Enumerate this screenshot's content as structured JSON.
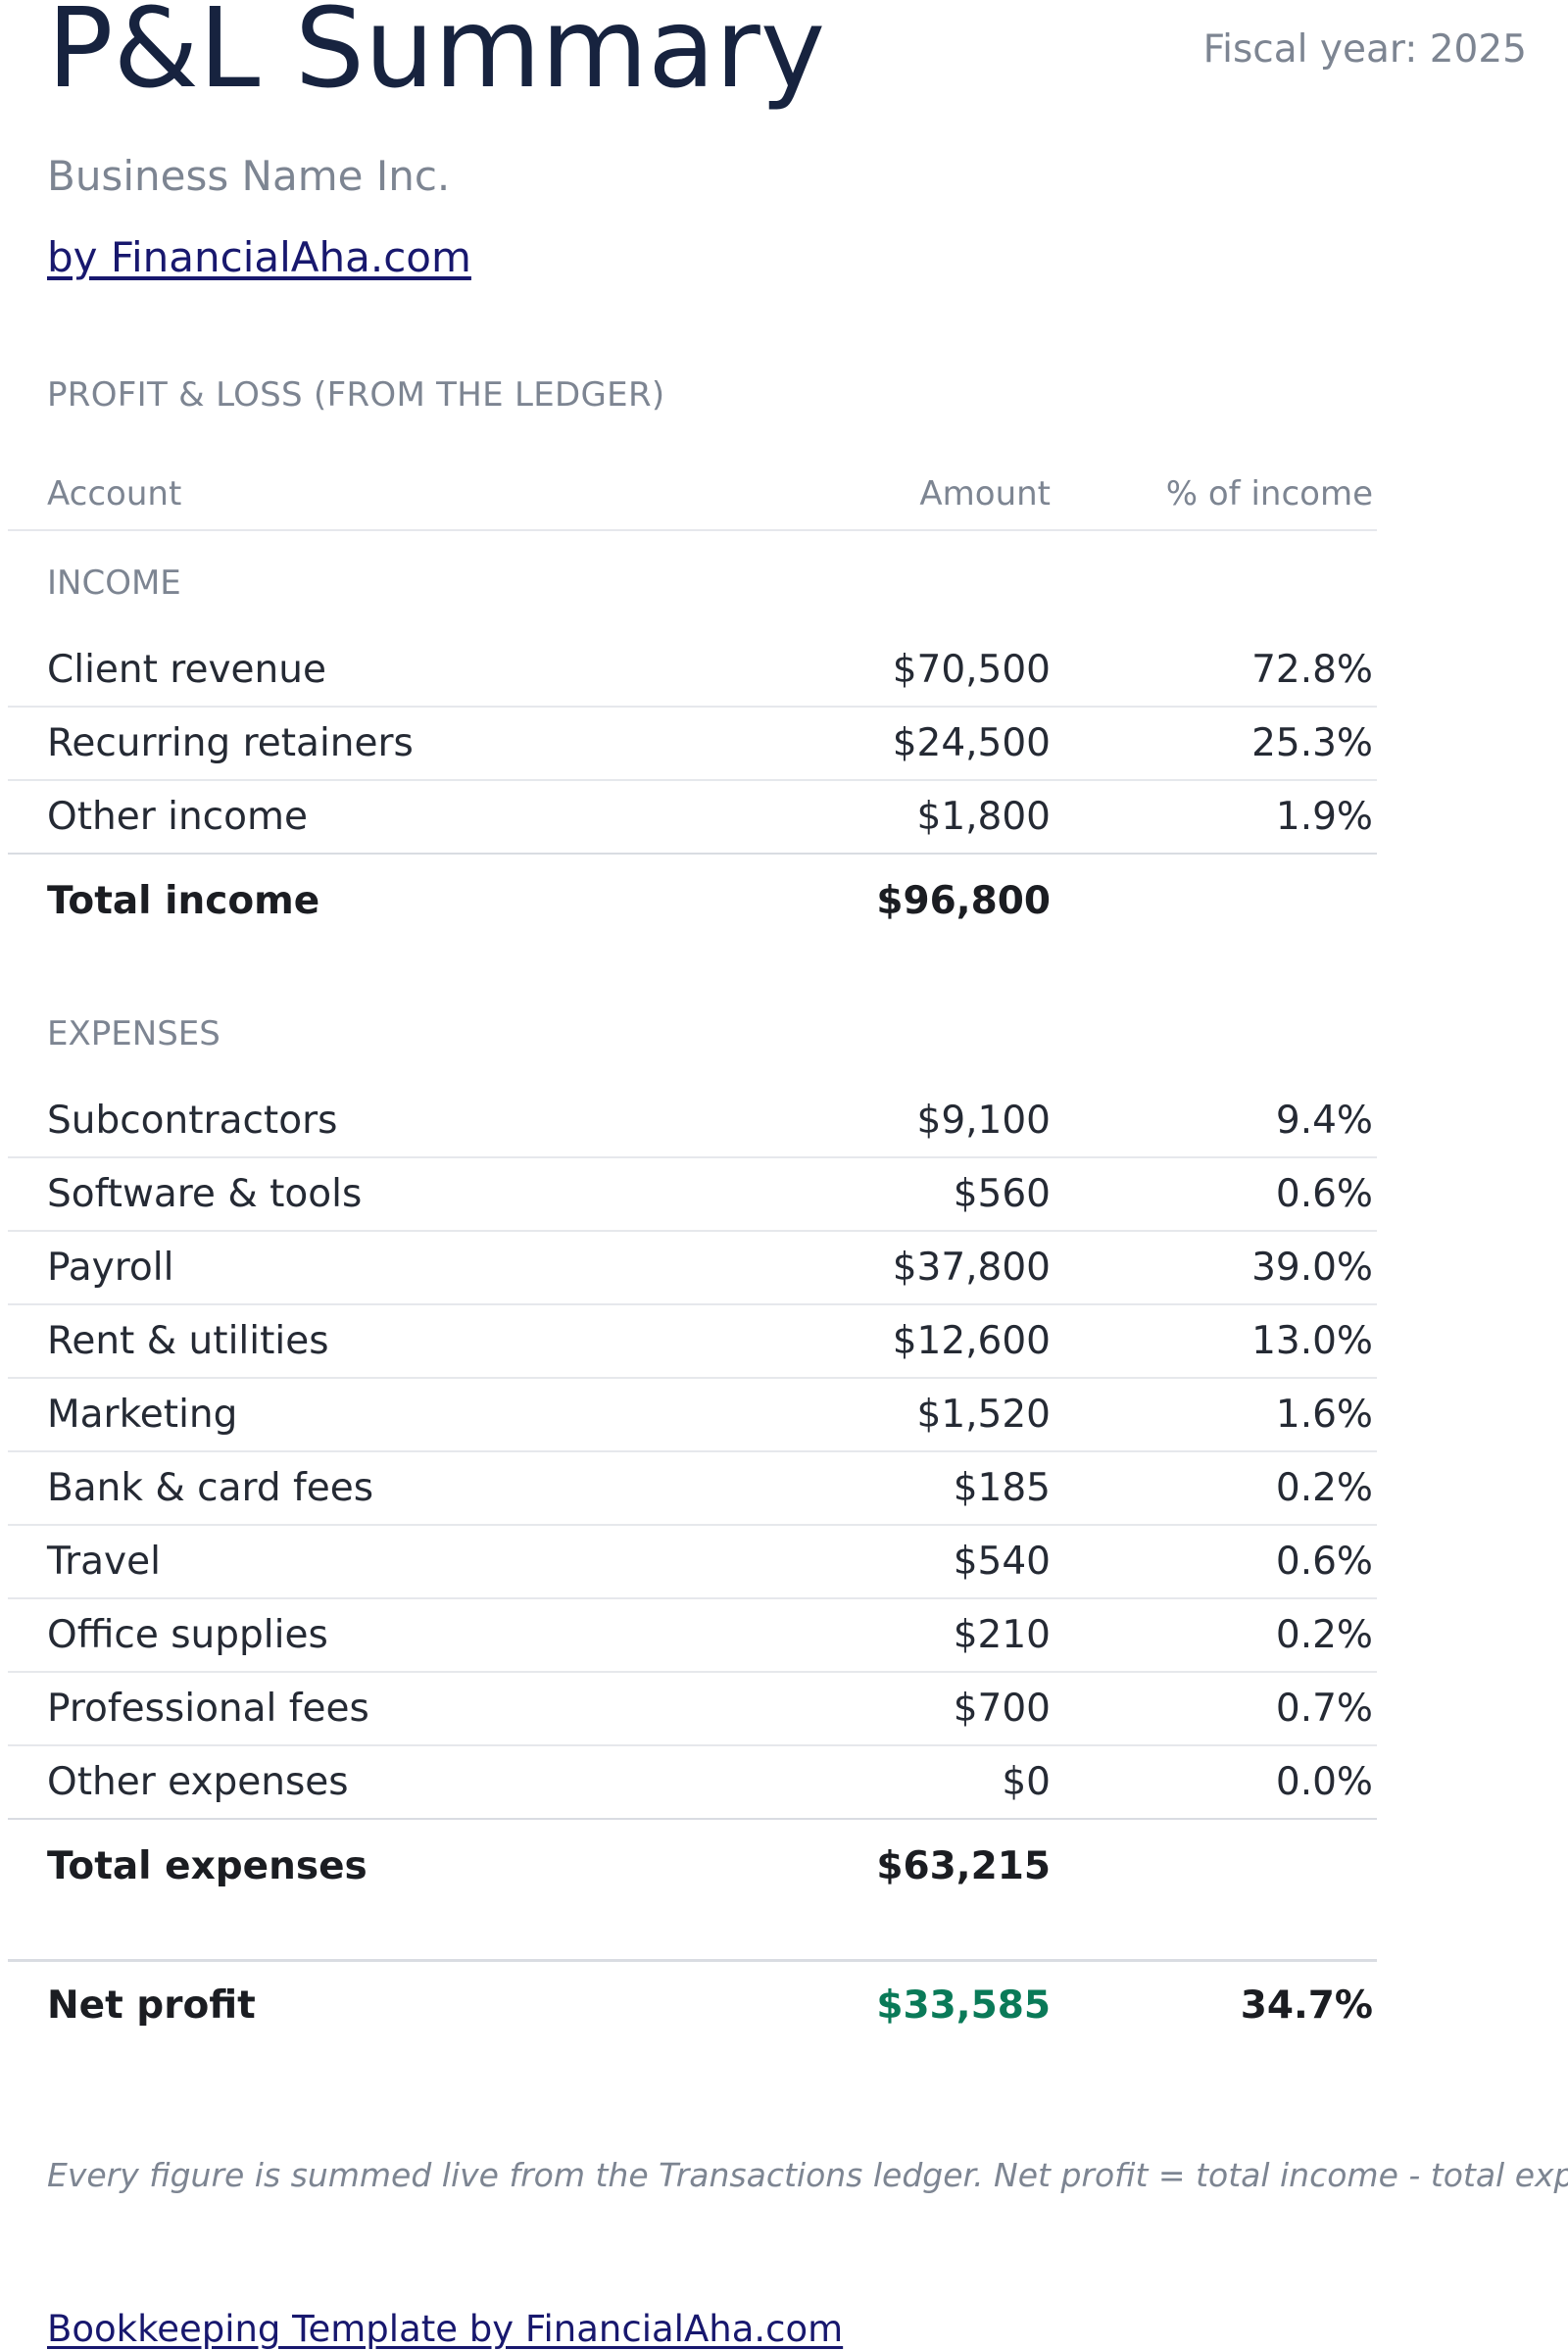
{
  "header": {
    "title": "P&L Summary",
    "fiscal_year": "Fiscal year: 2025",
    "business_name": "Business Name Inc.",
    "byline": "by FinancialAha.com"
  },
  "report": {
    "section_heading": "PROFIT & LOSS (FROM THE LEDGER)",
    "columns": {
      "account": "Account",
      "amount": "Amount",
      "percent": "% of income"
    },
    "income": {
      "heading": "INCOME",
      "items": [
        {
          "name": "Client revenue",
          "amount": "$70,500",
          "percent": "72.8%"
        },
        {
          "name": "Recurring retainers",
          "amount": "$24,500",
          "percent": "25.3%"
        },
        {
          "name": "Other income",
          "amount": "$1,800",
          "percent": "1.9%"
        }
      ],
      "total_label": "Total income",
      "total_amount": "$96,800"
    },
    "expenses": {
      "heading": "EXPENSES",
      "items": [
        {
          "name": "Subcontractors",
          "amount": "$9,100",
          "percent": "9.4%"
        },
        {
          "name": "Software & tools",
          "amount": "$560",
          "percent": "0.6%"
        },
        {
          "name": "Payroll",
          "amount": "$37,800",
          "percent": "39.0%"
        },
        {
          "name": "Rent & utilities",
          "amount": "$12,600",
          "percent": "13.0%"
        },
        {
          "name": "Marketing",
          "amount": "$1,520",
          "percent": "1.6%"
        },
        {
          "name": "Bank & card fees",
          "amount": "$185",
          "percent": "0.2%"
        },
        {
          "name": "Travel",
          "amount": "$540",
          "percent": "0.6%"
        },
        {
          "name": "Office supplies",
          "amount": "$210",
          "percent": "0.2%"
        },
        {
          "name": "Professional fees",
          "amount": "$700",
          "percent": "0.7%"
        },
        {
          "name": "Other expenses",
          "amount": "$0",
          "percent": "0.0%"
        }
      ],
      "total_label": "Total expenses",
      "total_amount": "$63,215"
    },
    "net_profit": {
      "label": "Net profit",
      "amount": "$33,585",
      "percent": "34.7%"
    }
  },
  "colors": {
    "title": "#17233f",
    "muted_text": "#7d8592",
    "link": "#18186e",
    "profit_positive": "#0a7a58"
  },
  "footer": {
    "note": "Every figure is summed live from the Transactions ledger. Net profit = total income - total expenses.",
    "link": "Bookkeeping Template by FinancialAha.com"
  }
}
